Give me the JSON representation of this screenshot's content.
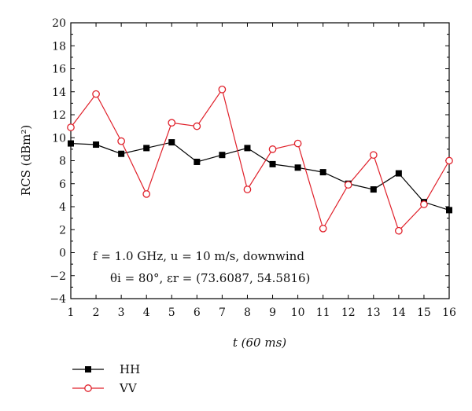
{
  "chart_data": {
    "type": "line",
    "xlabel": "t (60 ms)",
    "ylabel": "RCS (dBm²)",
    "xlim": [
      1,
      16
    ],
    "ylim": [
      -4,
      20
    ],
    "x": [
      1,
      2,
      3,
      4,
      5,
      6,
      7,
      8,
      9,
      10,
      11,
      12,
      13,
      14,
      15,
      16
    ],
    "x_ticks": [
      "1",
      "2",
      "3",
      "4",
      "5",
      "6",
      "7",
      "8",
      "9",
      "10",
      "11",
      "12",
      "13",
      "14",
      "15",
      "16"
    ],
    "y_ticks": [
      "20",
      "18",
      "16",
      "14",
      "12",
      "10",
      "8",
      "6",
      "4",
      "2",
      "0",
      "−2",
      "−4"
    ],
    "y_tick_values": [
      20,
      18,
      16,
      14,
      12,
      10,
      8,
      6,
      4,
      2,
      0,
      -2,
      -4
    ],
    "grid": false,
    "legend_position": "bottom-left",
    "series": [
      {
        "name": "HH",
        "color": "#000000",
        "marker": "filled-square",
        "values": [
          9.5,
          9.4,
          8.6,
          9.1,
          9.6,
          7.9,
          8.5,
          9.1,
          7.7,
          7.4,
          7.0,
          6.0,
          5.5,
          6.9,
          4.4,
          3.7
        ]
      },
      {
        "name": "VV",
        "color": "#e0202a",
        "marker": "open-circle",
        "values": [
          10.9,
          13.8,
          9.7,
          5.1,
          11.3,
          11.0,
          14.2,
          5.5,
          9.0,
          9.5,
          2.1,
          5.9,
          8.5,
          1.9,
          4.2,
          8.0
        ]
      }
    ],
    "annotations": [
      "f = 1.0 GHz, u = 10 m/s, downwind",
      "θi = 80°, εr = (73.6087, 54.5816)"
    ]
  }
}
